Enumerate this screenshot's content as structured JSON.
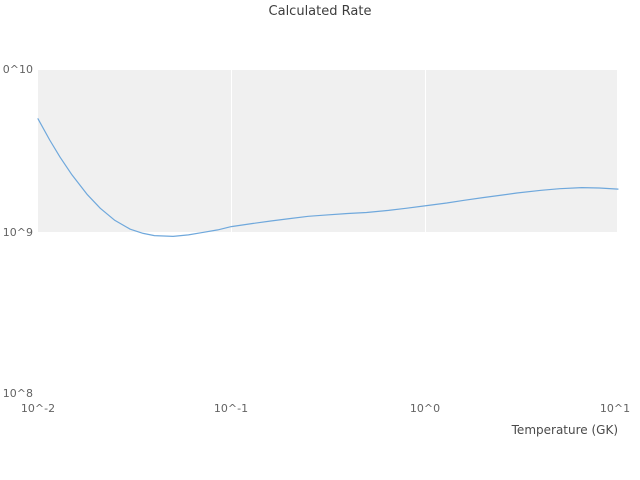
{
  "title": "Calculated Rate",
  "axes": {
    "x_label": "Temperature (GK)",
    "x_ticks": [
      "10^-2",
      "10^-1",
      "10^0",
      "10^1"
    ],
    "y_ticks": [
      "0^10",
      "10^9",
      "10^8"
    ]
  },
  "colors": {
    "line": "#6fa8dc",
    "band": "#f0f0f0",
    "tick_text": "#636363",
    "title_text": "#3d3d3d"
  },
  "chart_data": {
    "type": "line",
    "title": "Calculated Rate",
    "xlabel": "Temperature (GK)",
    "ylabel": "",
    "x_scale": "log",
    "y_scale": "log",
    "xlim": [
      0.01,
      10
    ],
    "ylim": [
      100000000.0,
      10000000000.0
    ],
    "grid": "white-on-gray-band, shaded decade band between 1e9 and 1e10",
    "legend": "none",
    "series": [
      {
        "name": "Calculated Rate",
        "x": [
          0.01,
          0.0115,
          0.013,
          0.015,
          0.018,
          0.021,
          0.025,
          0.03,
          0.035,
          0.04,
          0.05,
          0.06,
          0.07,
          0.085,
          0.1,
          0.13,
          0.16,
          0.2,
          0.25,
          0.3,
          0.4,
          0.5,
          0.65,
          0.8,
          1.0,
          1.3,
          1.6,
          2.0,
          2.5,
          3.0,
          4.0,
          5.0,
          6.5,
          8.0,
          10.0
        ],
        "y": [
          5000000000.0,
          3700000000.0,
          2900000000.0,
          2250000000.0,
          1700000000.0,
          1400000000.0,
          1180000000.0,
          1040000000.0,
          980000000.0,
          950000000.0,
          940000000.0,
          960000000.0,
          990000000.0,
          1030000000.0,
          1080000000.0,
          1130000000.0,
          1170000000.0,
          1210000000.0,
          1250000000.0,
          1270000000.0,
          1300000000.0,
          1320000000.0,
          1360000000.0,
          1400000000.0,
          1450000000.0,
          1510000000.0,
          1570000000.0,
          1630000000.0,
          1690000000.0,
          1740000000.0,
          1810000000.0,
          1850000000.0,
          1880000000.0,
          1870000000.0,
          1840000000.0
        ]
      }
    ]
  }
}
